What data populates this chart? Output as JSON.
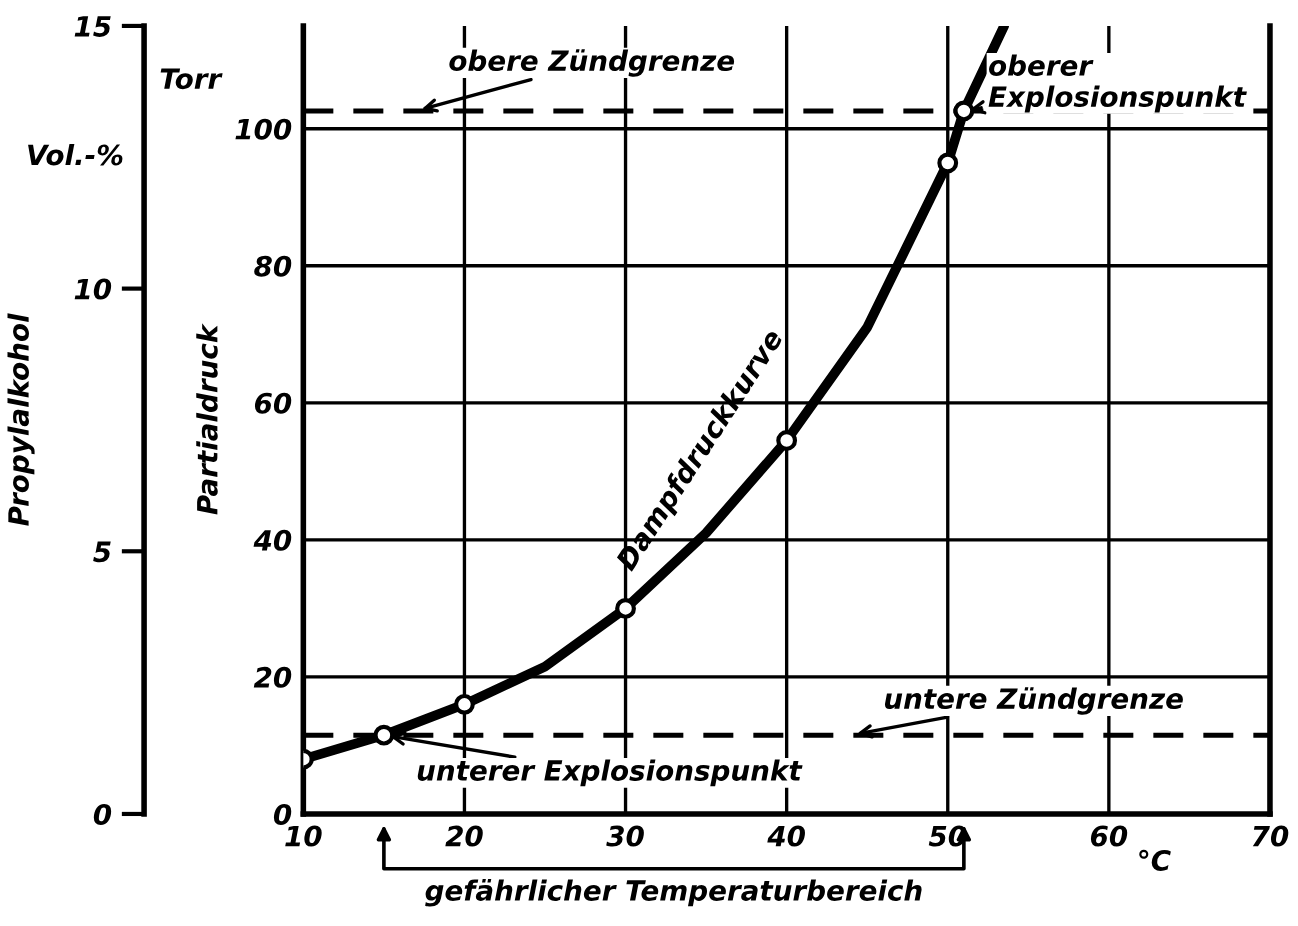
{
  "chart_data": {
    "type": "line",
    "ylabel": "Partialdruck",
    "y3label": "Propylalkohol",
    "xlim": [
      10,
      70
    ],
    "xticks": [
      10,
      20,
      30,
      40,
      50,
      60,
      70
    ],
    "ylim": [
      0,
      115
    ],
    "yticks": [
      0,
      20,
      40,
      60,
      80,
      100
    ],
    "y3lim": [
      0,
      15
    ],
    "y3ticks": [
      0,
      5,
      10,
      15
    ],
    "grid": true,
    "series": [
      {
        "name": "Dampfdruckkurve",
        "type": "line",
        "color": "#000000",
        "marker": "none",
        "x": [
          10,
          15,
          20,
          25,
          30,
          35,
          40,
          45,
          50,
          51,
          53.5
        ],
        "values": [
          8,
          11.5,
          16,
          21.5,
          30,
          41,
          54.5,
          71,
          95,
          102.6,
          115
        ]
      },
      {
        "type": "scatter",
        "color": "#000000",
        "marker": "circle",
        "x": [
          10,
          20,
          30,
          40,
          50
        ],
        "values": [
          8,
          16,
          30,
          54.5,
          95
        ]
      },
      {
        "type": "scatter",
        "color": "#000000",
        "marker": "circle",
        "x": [
          15,
          51
        ],
        "values": [
          11.5,
          102.6
        ]
      }
    ],
    "ref_lines": [
      {
        "axis": "y",
        "value": 102.6,
        "label": "obere Zündgrenze",
        "line_style": "dashed",
        "color": "#000000"
      },
      {
        "axis": "y",
        "value": 11.5,
        "label": "untere Zündgrenze",
        "line_style": "dashed",
        "color": "#000000"
      }
    ],
    "annotations": [
      "Torr",
      "Vol.-%",
      "°C",
      "gefährlicher Temperaturbereich",
      {
        "text": "unterer Explosionspunkt",
        "x": 15,
        "y": 11.5
      },
      {
        "text": "oberer\nExplosionspunkt",
        "x": 51,
        "y": 102.6
      }
    ]
  }
}
